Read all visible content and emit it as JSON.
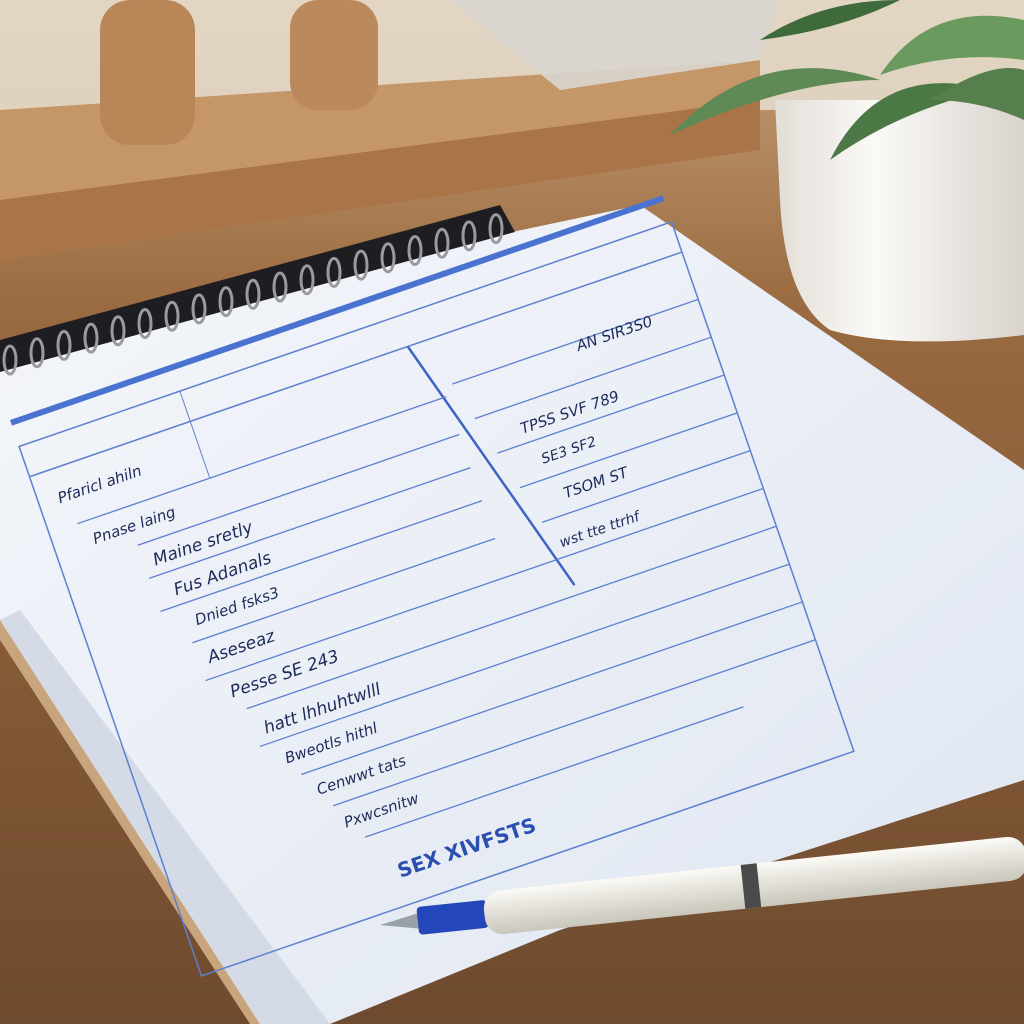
{
  "scene": {
    "description_colors": {
      "desk": "#8a5a36",
      "paper": "#eef2f8",
      "form_lines": "#3f63c4",
      "header_bar": "#4a72d0",
      "pot": "#f3f1ee",
      "leaves": "#4f7a4a",
      "pen_body": "#ecebe4",
      "pen_tip": "#2346b8"
    }
  },
  "form": {
    "left_entries": [
      "Pfaricl ahiln",
      "Pnase laing",
      "Maine sretly",
      "Fus Adanals",
      "Dnied fsks3",
      "Aseseaz",
      "Pesse SE 243",
      "hatt lhhuhtwlll",
      "Bweotls hithl",
      "Cenwwt tats",
      "Pxwcsnitw"
    ],
    "right_entries": [
      "TPSS SVF 789",
      "SE3 SF2",
      "TSOM ST",
      "AN SIR3S0",
      "wst tte ttrhf"
    ],
    "total_label": "SEX XIVFSTS"
  }
}
